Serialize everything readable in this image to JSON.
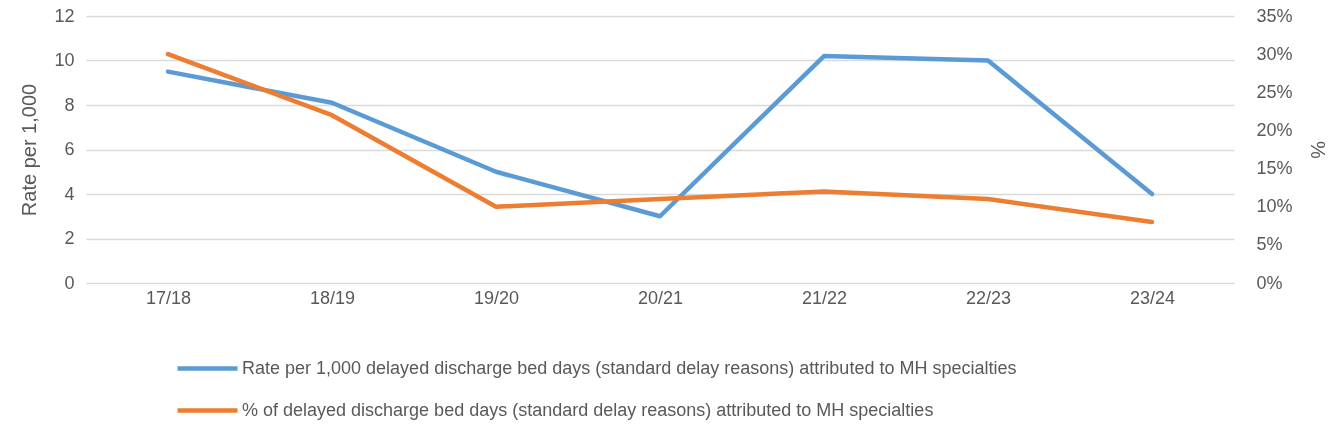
{
  "chart_data": {
    "type": "line",
    "categories": [
      "17/18",
      "18/19",
      "19/20",
      "20/21",
      "21/22",
      "22/23",
      "23/24"
    ],
    "ylabel": "Rate per 1,000",
    "y2label": "%",
    "ylim": [
      0,
      12
    ],
    "yticks": [
      0,
      2,
      4,
      6,
      8,
      10,
      12
    ],
    "y2lim": [
      0,
      35
    ],
    "y2ticks": [
      {
        "value": 0,
        "label": "0%"
      },
      {
        "value": 5,
        "label": "5%"
      },
      {
        "value": 10,
        "label": "10%"
      },
      {
        "value": 15,
        "label": "15%"
      },
      {
        "value": 20,
        "label": "20%"
      },
      {
        "value": 25,
        "label": "25%"
      },
      {
        "value": 30,
        "label": "30%"
      },
      {
        "value": 35,
        "label": "35%"
      }
    ],
    "grid": "y",
    "legend": "bottom",
    "series": [
      {
        "name": "Rate per 1,000 delayed discharge bed days (standard delay reasons) attributed to MH specialties",
        "color": "#5b9bd5",
        "values": [
          9.5,
          8.1,
          5.0,
          3.0,
          10.2,
          10.0,
          4.0
        ]
      },
      {
        "name": "% of delayed discharge bed days (standard delay reasons) attributed to MH specialties",
        "color": "#ed7d31",
        "axis": "y2",
        "values": [
          30,
          22,
          10,
          11,
          12,
          11,
          8
        ]
      }
    ]
  }
}
